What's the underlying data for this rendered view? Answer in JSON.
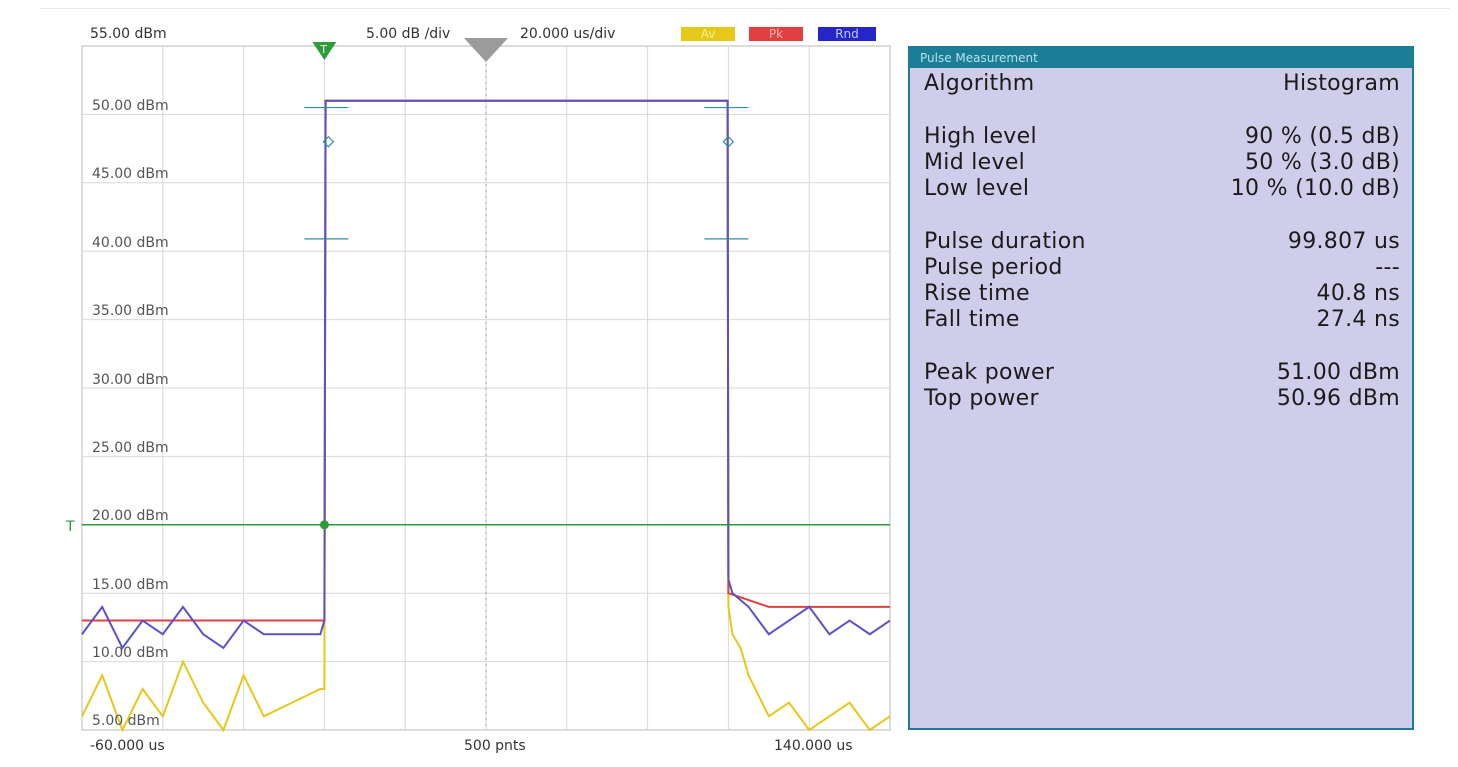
{
  "header": {
    "ref_level": "55.00 dBm",
    "scale": "5.00 dB /div",
    "time_scale": "20.000 us/div",
    "legend": [
      {
        "label": "Av",
        "color": "#e6c819"
      },
      {
        "label": "Pk",
        "color": "#e04040"
      },
      {
        "label": "Rnd",
        "color": "#2525c8"
      }
    ]
  },
  "footer": {
    "start": "-60.000 us",
    "points": "500 pnts",
    "stop": "140.000 us"
  },
  "trigger_marker": "T",
  "marker_label": "T",
  "chart_data": {
    "type": "line",
    "x_unit": "us",
    "y_unit": "dBm",
    "xlim": [
      -60,
      140
    ],
    "ylim": [
      5,
      55
    ],
    "y_tick_labels": [
      "50.00 dBm",
      "45.00 dBm",
      "40.00 dBm",
      "35.00 dBm",
      "30.00 dBm",
      "25.00 dBm",
      "20.00 dBm",
      "15.00 dBm",
      "10.00 dBm",
      "5.00 dBm"
    ],
    "grid": true,
    "trigger_level_dbm": 20,
    "series": [
      {
        "name": "Rnd",
        "color": "#5a52c8",
        "x": [
          -60,
          -55,
          -50,
          -45,
          -40,
          -35,
          -30,
          -25,
          -20,
          -15,
          -1,
          0,
          0.3,
          99.8,
          100,
          101,
          105,
          110,
          115,
          120,
          125,
          130,
          135,
          140
        ],
        "y": [
          12,
          14,
          11,
          13,
          12,
          14,
          12,
          11,
          13,
          12,
          12,
          13,
          51,
          51,
          16,
          15,
          14,
          12,
          13,
          14,
          12,
          13,
          12,
          13
        ]
      },
      {
        "name": "Pk",
        "color": "#e04040",
        "x": [
          -60,
          -40,
          -20,
          -1,
          0,
          0.3,
          99.8,
          100,
          110,
          130,
          140
        ],
        "y": [
          13,
          13,
          13,
          13,
          13,
          51,
          51,
          15,
          14,
          14,
          14
        ]
      },
      {
        "name": "Av",
        "color": "#e6c819",
        "x": [
          -60,
          -55,
          -50,
          -45,
          -40,
          -35,
          -30,
          -25,
          -20,
          -15,
          -1,
          0,
          0.3,
          99.8,
          100,
          101,
          103,
          105,
          110,
          115,
          120,
          125,
          130,
          135,
          140
        ],
        "y": [
          6,
          9,
          5,
          8,
          6,
          10,
          7,
          5,
          9,
          6,
          8,
          8,
          51,
          51,
          14,
          12,
          11,
          9,
          6,
          7,
          5,
          6,
          7,
          5,
          6
        ]
      }
    ]
  },
  "panel": {
    "title": "Pulse Measurement",
    "rows": [
      {
        "label": "Algorithm",
        "value": "Histogram"
      },
      {
        "label": "High level",
        "value": "90 % (0.5 dB)"
      },
      {
        "label": "Mid level",
        "value": "50 % (3.0 dB)"
      },
      {
        "label": "Low level",
        "value": "10 % (10.0 dB)"
      },
      {
        "label": "Pulse duration",
        "value": "99.807 us"
      },
      {
        "label": "Pulse period",
        "value": "---"
      },
      {
        "label": "Rise time",
        "value": "40.8 ns"
      },
      {
        "label": "Fall time",
        "value": "27.4 ns"
      },
      {
        "label": "Peak power",
        "value": "51.00 dBm"
      },
      {
        "label": "Top power",
        "value": "50.96 dBm"
      }
    ]
  }
}
